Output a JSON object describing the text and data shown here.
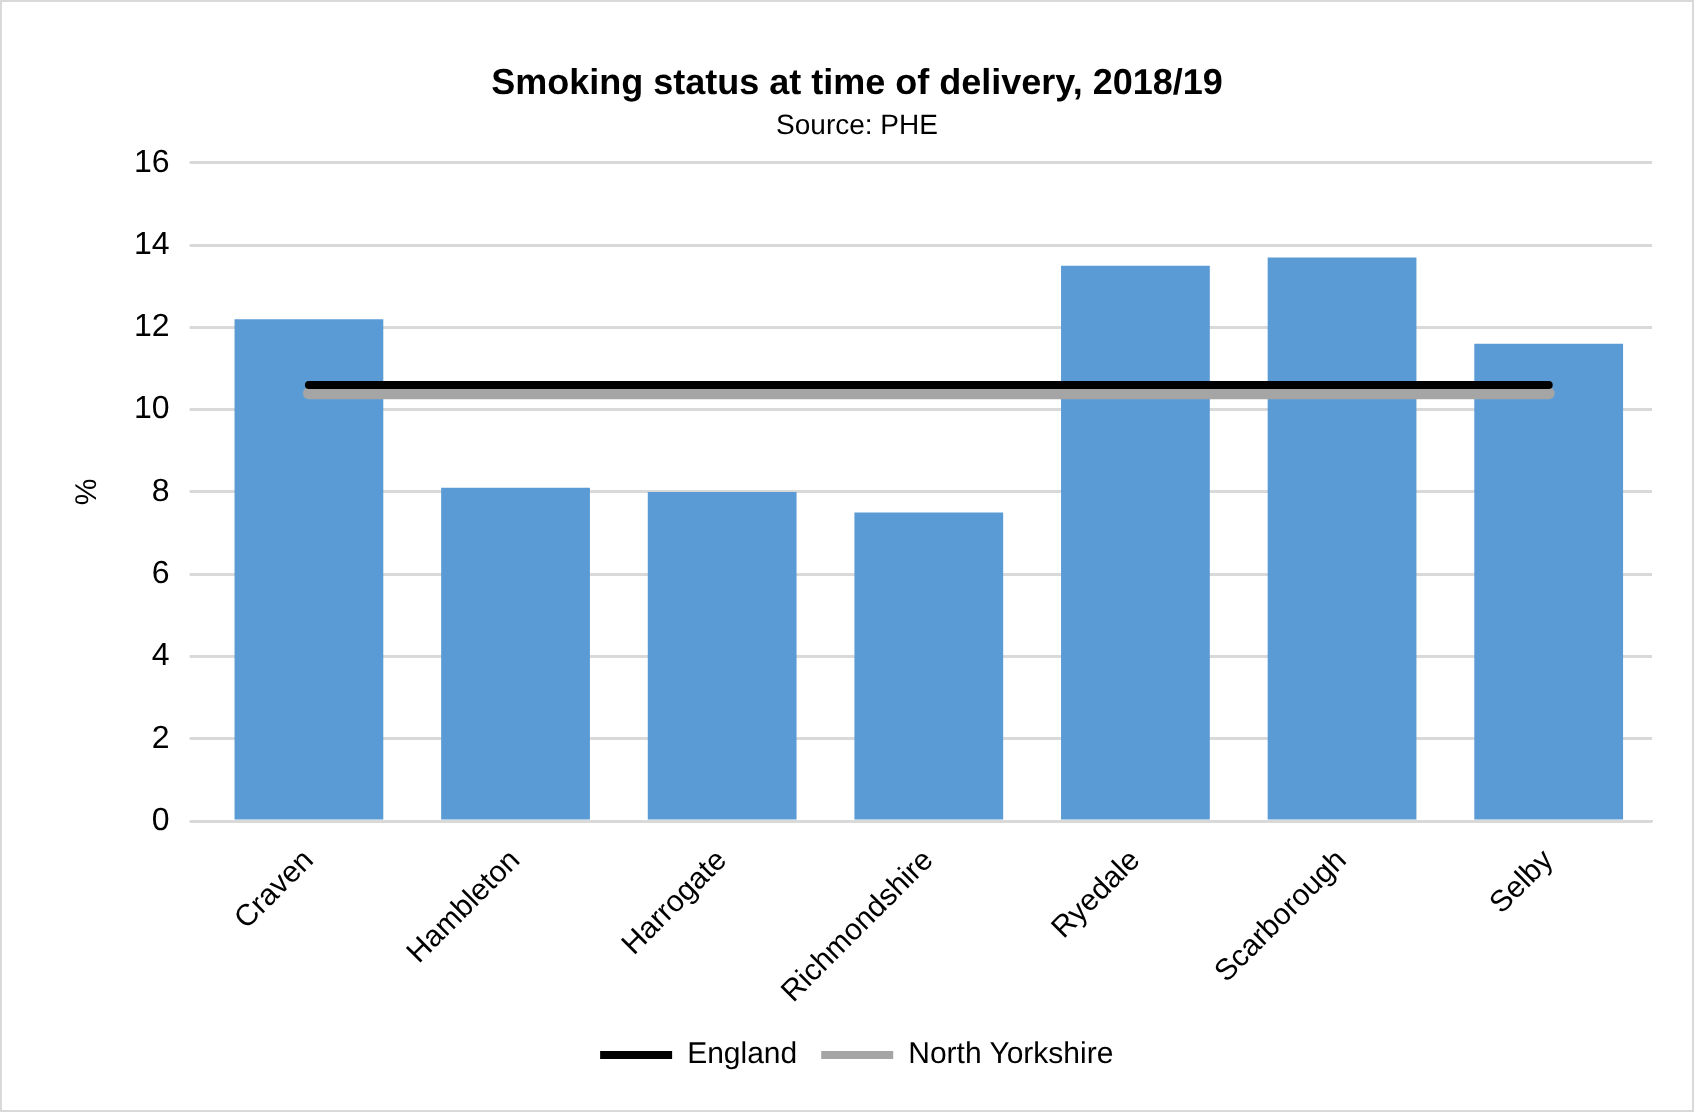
{
  "chart_data": {
    "type": "bar",
    "title": "Smoking status at time of delivery, 2018/19",
    "subtitle": "Source: PHE",
    "ylabel": "%",
    "categories": [
      "Craven",
      "Hambleton",
      "Harrogate",
      "Richmondshire",
      "Ryedale",
      "Scarborough",
      "Selby"
    ],
    "series": [
      {
        "color": "#5b9bd5",
        "values": [
          12.2,
          8.1,
          8.0,
          7.5,
          13.5,
          13.7,
          11.6
        ]
      },
      {
        "type": "line",
        "name": "England",
        "color": "#000000",
        "values": [
          10.6,
          10.6,
          10.6,
          10.6,
          10.6,
          10.6,
          10.6
        ]
      },
      {
        "type": "line",
        "name": "North Yorkshire",
        "color": "#a5a5a5",
        "values": [
          10.4,
          10.4,
          10.4,
          10.4,
          10.4,
          10.4,
          10.4
        ]
      }
    ],
    "ylim": [
      0,
      16
    ],
    "yticks": [
      0,
      2,
      4,
      6,
      8,
      10,
      12,
      14,
      16
    ],
    "grid": "y",
    "legend": "bottom",
    "marker": "none"
  }
}
